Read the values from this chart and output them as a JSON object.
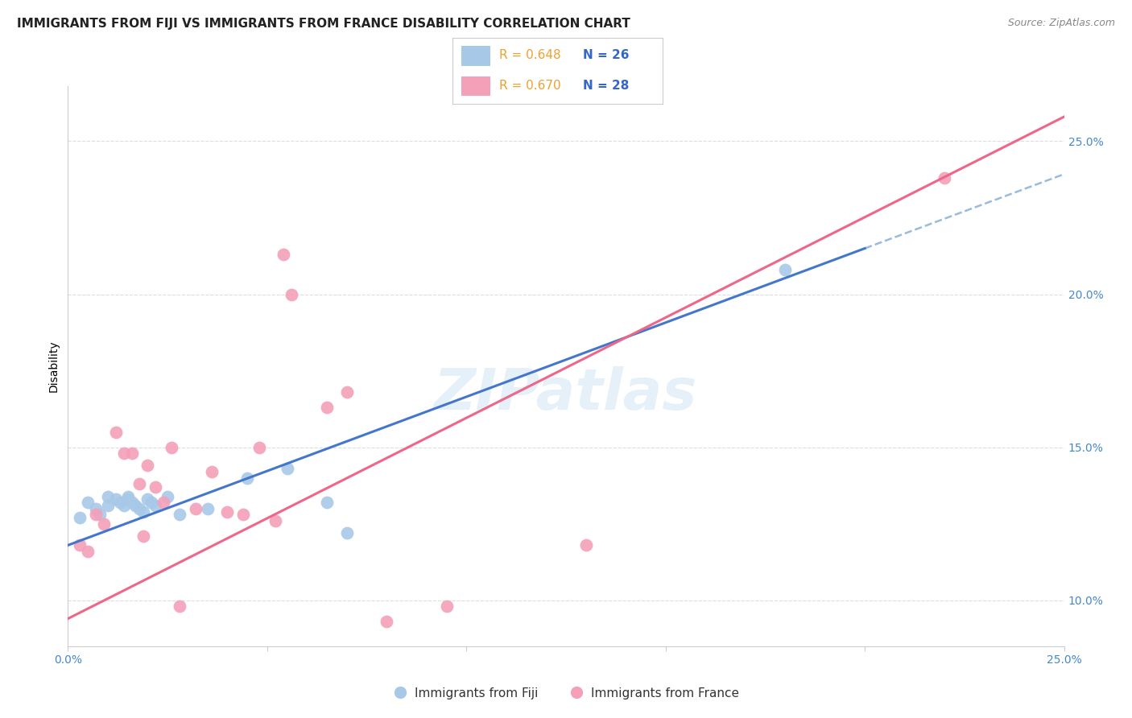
{
  "title": "IMMIGRANTS FROM FIJI VS IMMIGRANTS FROM FRANCE DISABILITY CORRELATION CHART",
  "source": "Source: ZipAtlas.com",
  "ylabel": "Disability",
  "xlim": [
    0.0,
    0.25
  ],
  "ylim": [
    0.085,
    0.268
  ],
  "yticks": [
    0.1,
    0.15,
    0.2,
    0.25
  ],
  "ytick_labels": [
    "10.0%",
    "15.0%",
    "20.0%",
    "25.0%"
  ],
  "xticks": [
    0.0,
    0.05,
    0.1,
    0.15,
    0.2,
    0.25
  ],
  "fiji_R": 0.648,
  "fiji_N": 26,
  "france_R": 0.67,
  "france_N": 28,
  "fiji_color": "#a8c8e8",
  "france_color": "#f4a0b8",
  "fiji_line_color": "#4477cc",
  "france_line_color": "#ee6688",
  "dashed_line_color": "#99bbdd",
  "fiji_x": [
    0.003,
    0.005,
    0.007,
    0.008,
    0.01,
    0.01,
    0.012,
    0.013,
    0.014,
    0.015,
    0.015,
    0.016,
    0.017,
    0.018,
    0.019,
    0.02,
    0.021,
    0.022,
    0.025,
    0.028,
    0.035,
    0.045,
    0.055,
    0.065,
    0.07,
    0.18
  ],
  "fiji_y": [
    0.127,
    0.132,
    0.13,
    0.128,
    0.134,
    0.131,
    0.133,
    0.132,
    0.131,
    0.134,
    0.133,
    0.132,
    0.131,
    0.13,
    0.129,
    0.133,
    0.132,
    0.131,
    0.134,
    0.128,
    0.13,
    0.14,
    0.143,
    0.132,
    0.122,
    0.208
  ],
  "france_x": [
    0.003,
    0.005,
    0.007,
    0.009,
    0.012,
    0.014,
    0.016,
    0.018,
    0.019,
    0.02,
    0.022,
    0.024,
    0.026,
    0.028,
    0.032,
    0.036,
    0.04,
    0.044,
    0.048,
    0.052,
    0.054,
    0.056,
    0.065,
    0.07,
    0.08,
    0.095,
    0.13,
    0.22
  ],
  "france_y": [
    0.118,
    0.116,
    0.128,
    0.125,
    0.155,
    0.148,
    0.148,
    0.138,
    0.121,
    0.144,
    0.137,
    0.132,
    0.15,
    0.098,
    0.13,
    0.142,
    0.129,
    0.128,
    0.15,
    0.126,
    0.213,
    0.2,
    0.163,
    0.168,
    0.093,
    0.098,
    0.118,
    0.238
  ],
  "background_color": "#ffffff",
  "grid_color": "#dddddd",
  "title_fontsize": 11,
  "axis_label_fontsize": 10,
  "tick_fontsize": 10,
  "legend_fontsize": 11,
  "fiji_line_x0": 0.0,
  "fiji_line_y0": 0.118,
  "fiji_line_x1": 0.2,
  "fiji_line_y1": 0.215,
  "france_line_x0": 0.0,
  "france_line_y0": 0.094,
  "france_line_x1": 0.25,
  "france_line_y1": 0.258
}
